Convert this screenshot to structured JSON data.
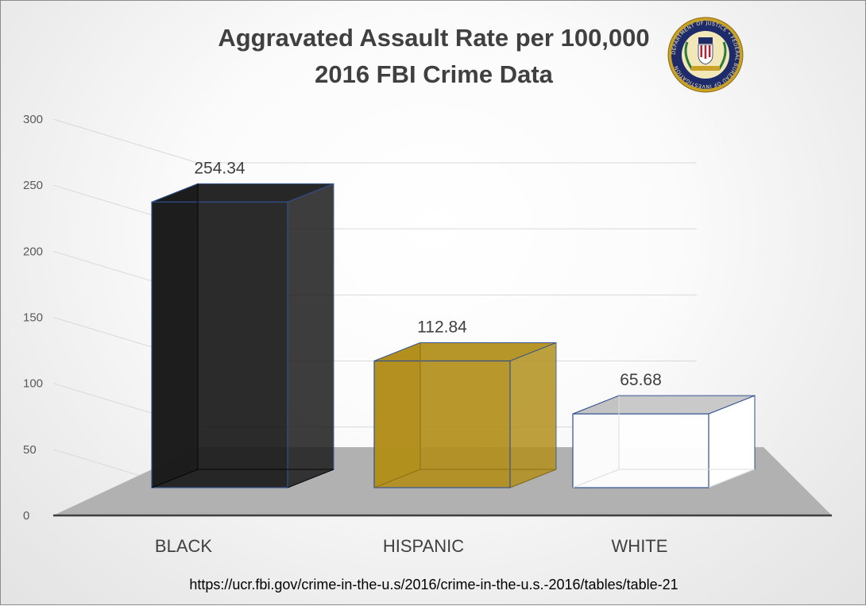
{
  "chart_data": {
    "type": "bar",
    "title": "Aggravated Assault Rate per 100,000",
    "subtitle": "2016 FBI Crime Data",
    "categories": [
      "BLACK",
      "HISPANIC",
      "WHITE"
    ],
    "values": [
      254.34,
      112.84,
      65.68
    ],
    "value_labels": [
      "254.34",
      "112.84",
      "65.68"
    ],
    "ylim": [
      0,
      300
    ],
    "yticks": [
      "0",
      "50",
      "100",
      "150",
      "200",
      "250",
      "300"
    ],
    "xlabel": "",
    "ylabel": "",
    "grid": true,
    "legend": "none",
    "style": "3d-column"
  },
  "colors": {
    "BLACK": "#1c1c1c",
    "HISPANIC": "#b3901e",
    "WHITE": "#ffffff",
    "bar_edge": "#2f4f8f",
    "floor": "#b1b1b1",
    "text": "#404040"
  },
  "logo": {
    "icon": "fbi-seal-icon",
    "ring_text": "DEPARTMENT OF JUSTICE • FEDERAL BUREAU OF INVESTIGATION",
    "motto": "FIDELITY BRAVERY INTEGRITY"
  },
  "source": "https://ucr.fbi.gov/crime-in-the-u.s/2016/crime-in-the-u.s.-2016/tables/table-21"
}
